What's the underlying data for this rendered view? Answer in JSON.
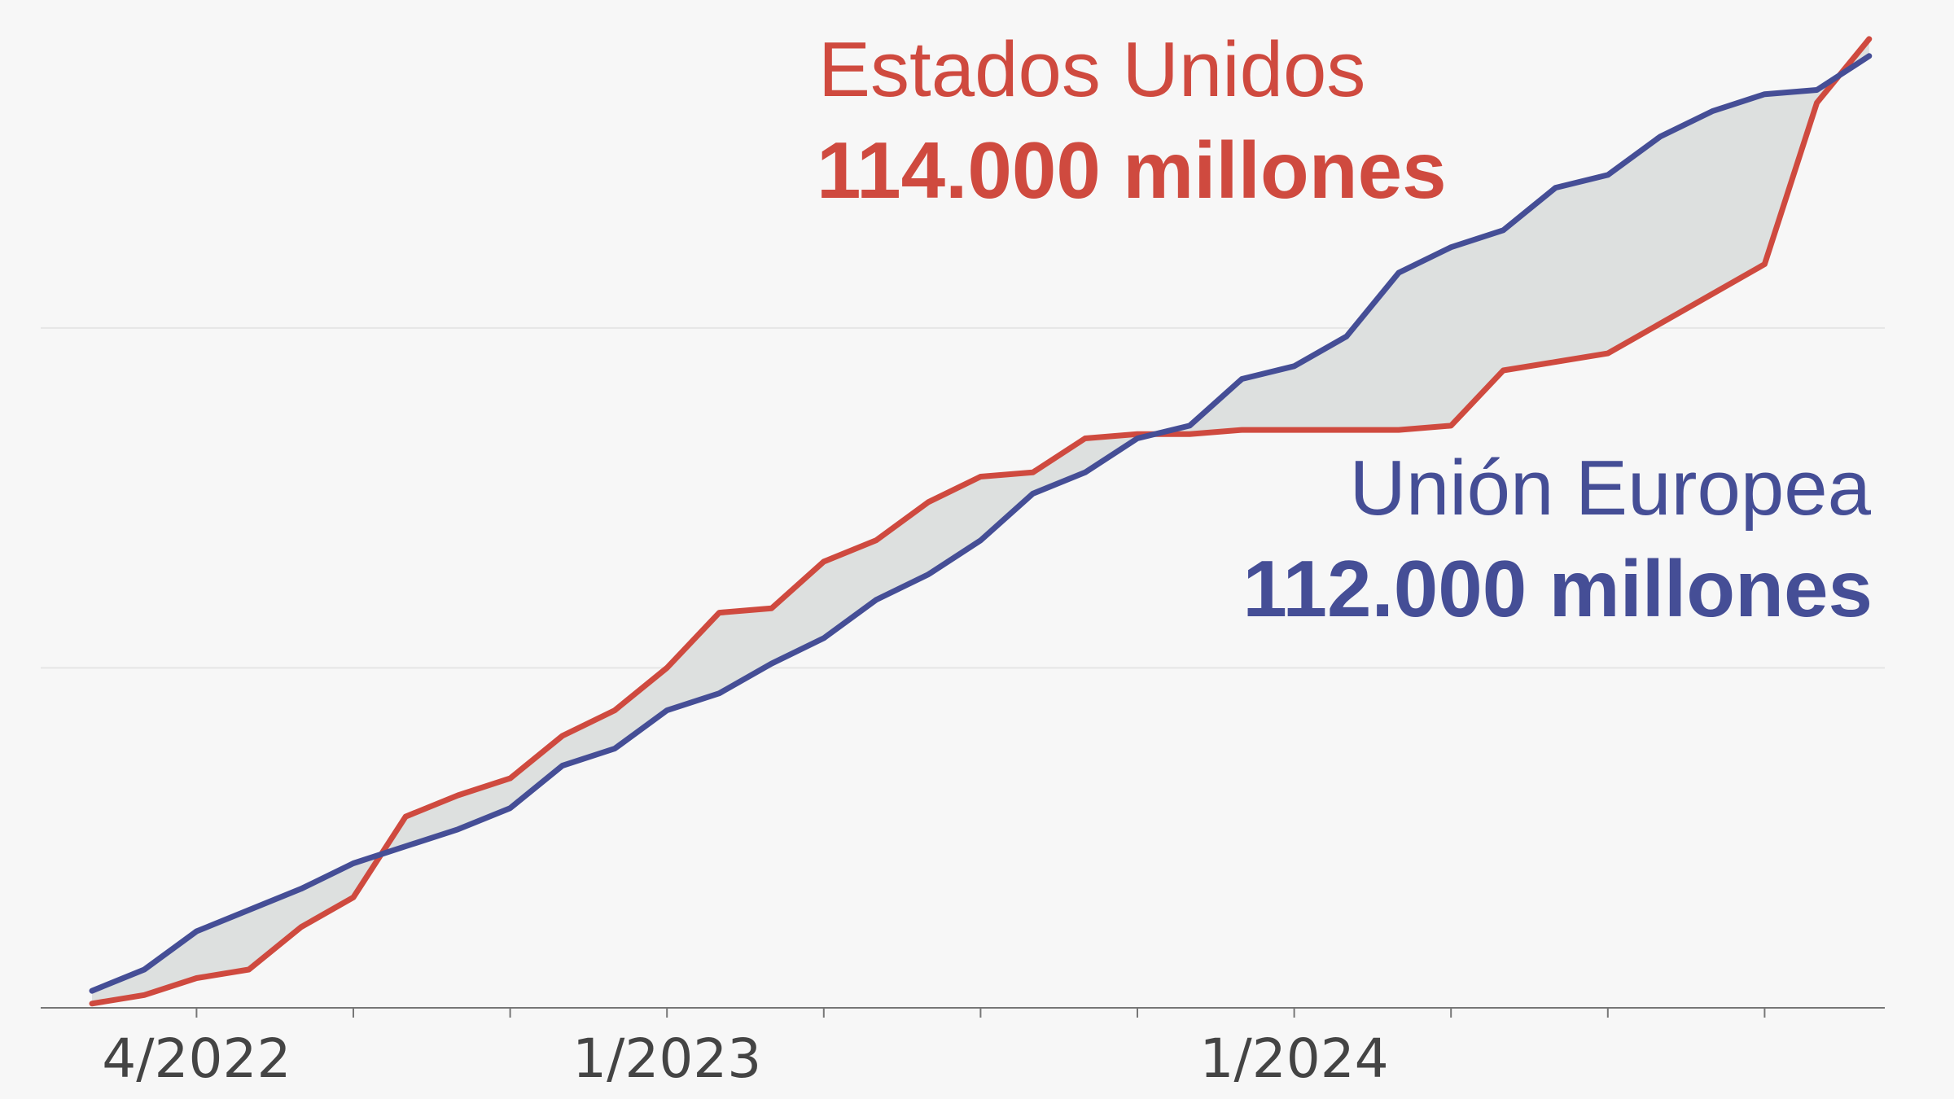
{
  "colors": {
    "us": "#cf4a3f",
    "eu": "#454e96",
    "fill": "#dde0df",
    "grid": "#e6e6e6",
    "axis": "#777777",
    "background": "#f7f7f7"
  },
  "labels": {
    "us_name": "Estados Unidos",
    "us_value": "114.000 millones",
    "eu_name": "Unión Europea",
    "eu_value": "112.000 millones"
  },
  "chart_data": {
    "type": "line",
    "title": "",
    "xlabel": "",
    "ylabel": "",
    "x": [
      "2/2022",
      "3/2022",
      "4/2022",
      "5/2022",
      "6/2022",
      "7/2022",
      "8/2022",
      "9/2022",
      "10/2022",
      "11/2022",
      "12/2022",
      "1/2023",
      "2/2023",
      "3/2023",
      "4/2023",
      "5/2023",
      "6/2023",
      "7/2023",
      "8/2023",
      "9/2023",
      "10/2023",
      "11/2023",
      "12/2023",
      "1/2024",
      "2/2024",
      "3/2024",
      "4/2024",
      "5/2024",
      "6/2024",
      "7/2024",
      "8/2024",
      "9/2024",
      "10/2024",
      "11/2024",
      "12/2024"
    ],
    "tick_labels": [
      {
        "x": "4/2022",
        "label": "4/2022"
      },
      {
        "x": "1/2023",
        "label": "1/2023"
      },
      {
        "x": "1/2024",
        "label": "1/2024"
      }
    ],
    "minor_ticks": [
      "4/2022",
      "7/2022",
      "10/2022",
      "1/2023",
      "4/2023",
      "7/2023",
      "10/2023",
      "1/2024",
      "4/2024",
      "7/2024",
      "10/2024"
    ],
    "ylim": [
      0,
      116
    ],
    "gridlines": [
      40,
      80
    ],
    "grid": true,
    "series": [
      {
        "name": "Estados Unidos",
        "color": "#cf4a3f",
        "values": [
          0.5,
          1.5,
          3.5,
          4.5,
          9.5,
          13,
          22.5,
          25,
          27,
          32,
          35,
          40,
          46.5,
          47,
          52.5,
          55,
          59.5,
          62.5,
          63,
          67,
          67.5,
          67.5,
          68,
          68,
          68,
          68,
          68.5,
          75,
          76,
          77,
          80.5,
          84,
          87.5,
          106.5,
          114
        ]
      },
      {
        "name": "Unión Europea",
        "color": "#454e96",
        "values": [
          2,
          4.5,
          9,
          11.5,
          14,
          17,
          19,
          21,
          23.5,
          28.5,
          30.5,
          35,
          37,
          40.5,
          43.5,
          48,
          51,
          55,
          60.5,
          63,
          67,
          68.5,
          74,
          75.5,
          79,
          86.5,
          89.5,
          91.5,
          96.5,
          98,
          102.5,
          105.5,
          107.5,
          108,
          112
        ]
      }
    ]
  }
}
